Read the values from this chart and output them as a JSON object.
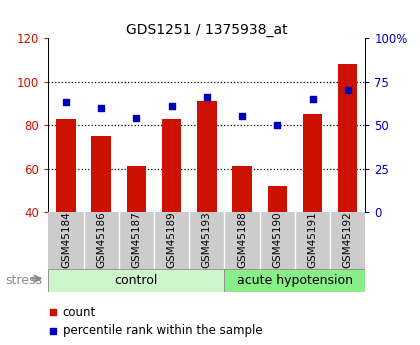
{
  "title": "GDS1251 / 1375938_at",
  "samples": [
    "GSM45184",
    "GSM45186",
    "GSM45187",
    "GSM45189",
    "GSM45193",
    "GSM45188",
    "GSM45190",
    "GSM45191",
    "GSM45192"
  ],
  "counts": [
    83,
    75,
    61,
    83,
    91,
    61,
    52,
    85,
    108
  ],
  "percentiles": [
    63,
    60,
    54,
    61,
    66,
    55,
    50,
    65,
    70
  ],
  "bar_color": "#cc1100",
  "dot_color": "#0000bb",
  "left_ylim": [
    40,
    120
  ],
  "left_yticks": [
    40,
    60,
    80,
    100,
    120
  ],
  "right_ylim": [
    0,
    100
  ],
  "right_yticks": [
    0,
    25,
    50,
    75,
    100
  ],
  "right_yticklabels": [
    "0",
    "25",
    "50",
    "75",
    "100%"
  ],
  "n_control": 5,
  "n_acute": 4,
  "control_label": "control",
  "acute_label": "acute hypotension",
  "stress_label": "stress",
  "legend_count": "count",
  "legend_pct": "percentile rank within the sample",
  "tick_bg": "#cccccc",
  "control_bg": "#ccf5cc",
  "acute_bg": "#88ee88",
  "bar_width": 0.55
}
